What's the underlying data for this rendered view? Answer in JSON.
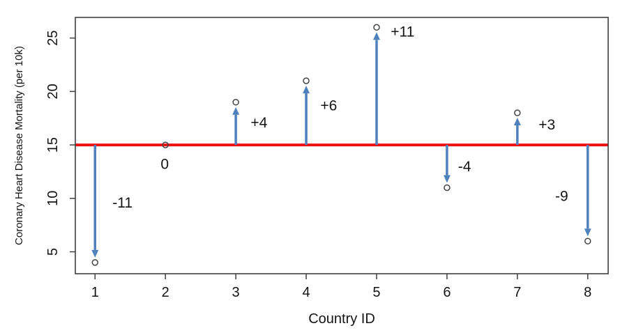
{
  "page": {
    "background": "#ffffff"
  },
  "chart_data": {
    "type": "scatter",
    "subtype": "stem-deviation-arrows",
    "title": "",
    "xlabel": "Country ID",
    "ylabel": "Coronary Heart Disease Mortality (per 10k)",
    "x": [
      1,
      2,
      3,
      4,
      5,
      6,
      7,
      8
    ],
    "values": [
      4,
      15,
      19,
      21,
      26,
      11,
      18,
      6
    ],
    "deviations": [
      -11,
      0,
      4,
      6,
      11,
      -4,
      3,
      -9
    ],
    "deviation_labels": [
      "-11",
      "0",
      "+4",
      "+6",
      "+11",
      "-4",
      "+3",
      "-9"
    ],
    "reference_line": {
      "y": 15
    },
    "annotations": [
      {
        "text": "-11",
        "x": 1.39,
        "y": 9.6
      },
      {
        "text": "0",
        "x": 1.99,
        "y": 13.2
      },
      {
        "text": "+4",
        "x": 3.33,
        "y": 17.1
      },
      {
        "text": "+6",
        "x": 4.32,
        "y": 18.7
      },
      {
        "text": "+11",
        "x": 5.37,
        "y": 25.6
      },
      {
        "text": "-4",
        "x": 6.25,
        "y": 13.0
      },
      {
        "text": "+3",
        "x": 7.42,
        "y": 16.9
      },
      {
        "text": "-9",
        "x": 7.63,
        "y": 10.2
      }
    ],
    "xticks": [
      1,
      2,
      3,
      4,
      5,
      6,
      7,
      8
    ],
    "yticks": [
      5,
      10,
      15,
      20,
      25
    ],
    "xlim": [
      0.72,
      8.29
    ],
    "ylim": [
      2.95,
      26.93
    ],
    "grid": false,
    "legend": null,
    "marker": "open-circle",
    "colors": {
      "arrow": "#4f81bd",
      "reference_line": "#ee1111",
      "marker_stroke": "#444444",
      "axis": "#3f3f3f",
      "text": "#141414"
    }
  }
}
